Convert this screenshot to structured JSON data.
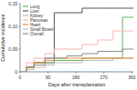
{
  "chart_data": {
    "type": "line",
    "line_style": "step",
    "legend": "top-left",
    "x_label": "Days after transplantation",
    "y_label": "Cumulative incidence",
    "x": [
      0,
      20,
      45,
      80,
      110,
      150,
      200,
      250,
      300,
      330,
      365
    ],
    "xlim": [
      0,
      365
    ],
    "xticks": [
      0,
      90,
      180,
      270,
      360
    ],
    "ylim": [
      0,
      0.15
    ],
    "yticks": [
      0,
      0.05,
      {
        "value": 0.1,
        "label": "0.10"
      },
      0.15
    ],
    "series": [
      {
        "name": "Lung",
        "color": "#5cb85c",
        "values": [
          0,
          0.01,
          0.02,
          0.02,
          0.025,
          0.025,
          0.03,
          0.03,
          0.03,
          0.12,
          0.12
        ]
      },
      {
        "name": "Liver",
        "color": "#555555",
        "values": [
          0,
          0.01,
          0.02,
          0.03,
          0.13,
          0.13,
          0.14,
          0.14,
          0.14,
          0.14,
          0.14
        ]
      },
      {
        "name": "Kidney",
        "color": "#bbbbbb",
        "values": [
          0,
          0.005,
          0.01,
          0.015,
          0.02,
          0.02,
          0.025,
          0.025,
          0.03,
          0.03,
          0.03
        ]
      },
      {
        "name": "Pancreas",
        "color": "#f2b8b0",
        "values": [
          0,
          0.02,
          0.03,
          0.04,
          0.05,
          0.05,
          0.06,
          0.07,
          0.09,
          0.09,
          0.09
        ]
      },
      {
        "name": "Heart",
        "color": "#f0883a",
        "values": [
          0,
          0.01,
          0.02,
          0.025,
          0.03,
          0.03,
          0.03,
          0.03,
          0.03,
          0.03,
          0.03
        ]
      },
      {
        "name": "Small Bowel",
        "color": "#9fc8e8",
        "values": [
          0,
          0,
          0,
          0,
          0,
          0,
          0,
          0,
          0,
          0,
          0
        ]
      },
      {
        "name": "Overall",
        "color": "#8c8c8c",
        "values": [
          0,
          0.01,
          0.015,
          0.02,
          0.03,
          0.035,
          0.04,
          0.045,
          0.045,
          0.05,
          0.05
        ]
      }
    ]
  }
}
